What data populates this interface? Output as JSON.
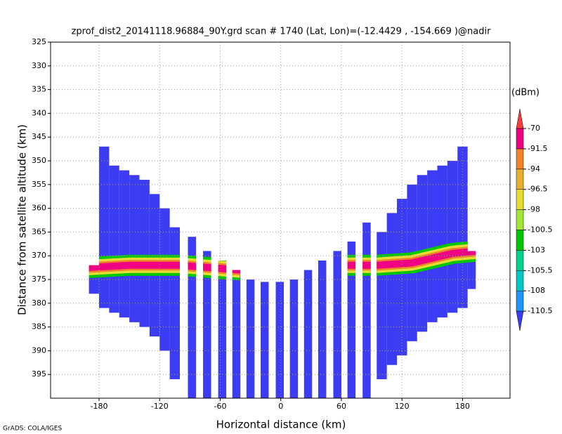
{
  "chart_data": {
    "type": "radar-profile",
    "title": "zprof_dist2_20141118.96884_90Y.grd  scan # 1740  (Lat, Lon)=(-12.4429 , -154.669 )@nadir",
    "xlabel": "Horizontal distance (km)",
    "ylabel": "Distance from satellite altitude (km)",
    "units": "(dBm)",
    "footer": "GrADS: COLA/IGES",
    "xlim": [
      -228,
      227
    ],
    "xticks": [
      -180,
      -120,
      -60,
      0,
      60,
      120,
      180
    ],
    "ylim": [
      325,
      400
    ],
    "yticks": [
      325,
      330,
      335,
      340,
      345,
      350,
      355,
      360,
      365,
      370,
      375,
      380,
      385,
      390,
      395
    ],
    "y_inverted": true,
    "grid": true,
    "levels": [
      -110.5,
      -108,
      -105.5,
      -103,
      -100.5,
      -98,
      -96.5,
      -94,
      -91.5,
      -70
    ],
    "colors": [
      "#3c3cf5",
      "#1e96ff",
      "#00c8c8",
      "#00d28c",
      "#00c800",
      "#a0e632",
      "#e6dc32",
      "#e6af2d",
      "#f08228",
      "#f00082",
      "#fa3c3c"
    ],
    "swath_value": -112,
    "swath": {
      "x_left": [
        -190,
        -180,
        -170,
        -160,
        -150,
        -140,
        -130,
        -120,
        -110,
        -92,
        -77,
        -62,
        -48,
        -34,
        -20,
        -5,
        9,
        23,
        37,
        52,
        66,
        81,
        95,
        105,
        115,
        125,
        135,
        145,
        155,
        165,
        175,
        185
      ],
      "x_right": [
        -180,
        -170,
        -160,
        -150,
        -140,
        -130,
        -120,
        -110,
        -100,
        -84,
        -69,
        -54,
        -40,
        -26,
        -12,
        3,
        17,
        31,
        45,
        60,
        74,
        89,
        105,
        115,
        125,
        135,
        145,
        155,
        165,
        175,
        185,
        193
      ],
      "top": [
        372,
        347,
        351,
        352,
        353,
        354,
        357,
        360,
        364,
        366,
        369,
        371,
        373,
        375,
        375.5,
        375.5,
        375,
        373,
        371,
        369,
        367,
        363,
        365,
        361,
        358,
        355,
        353,
        352,
        351,
        350,
        347,
        369
      ],
      "bottom": [
        378,
        381,
        382,
        383,
        384,
        385,
        387,
        390,
        396,
        400,
        400,
        400,
        400,
        400,
        400,
        400,
        400,
        400,
        400,
        400,
        400,
        400,
        396,
        393,
        391,
        388,
        386,
        384,
        383,
        382,
        381,
        377
      ]
    },
    "band": {
      "x": [
        -192,
        -150,
        -100,
        -40,
        -30,
        50,
        60,
        95,
        130,
        170,
        195
      ],
      "y": [
        372.5,
        372,
        372,
        373,
        null,
        null,
        372,
        372,
        371.5,
        369.5,
        369
      ],
      "levels": [
        -102,
        -97,
        -93,
        -85
      ]
    }
  }
}
